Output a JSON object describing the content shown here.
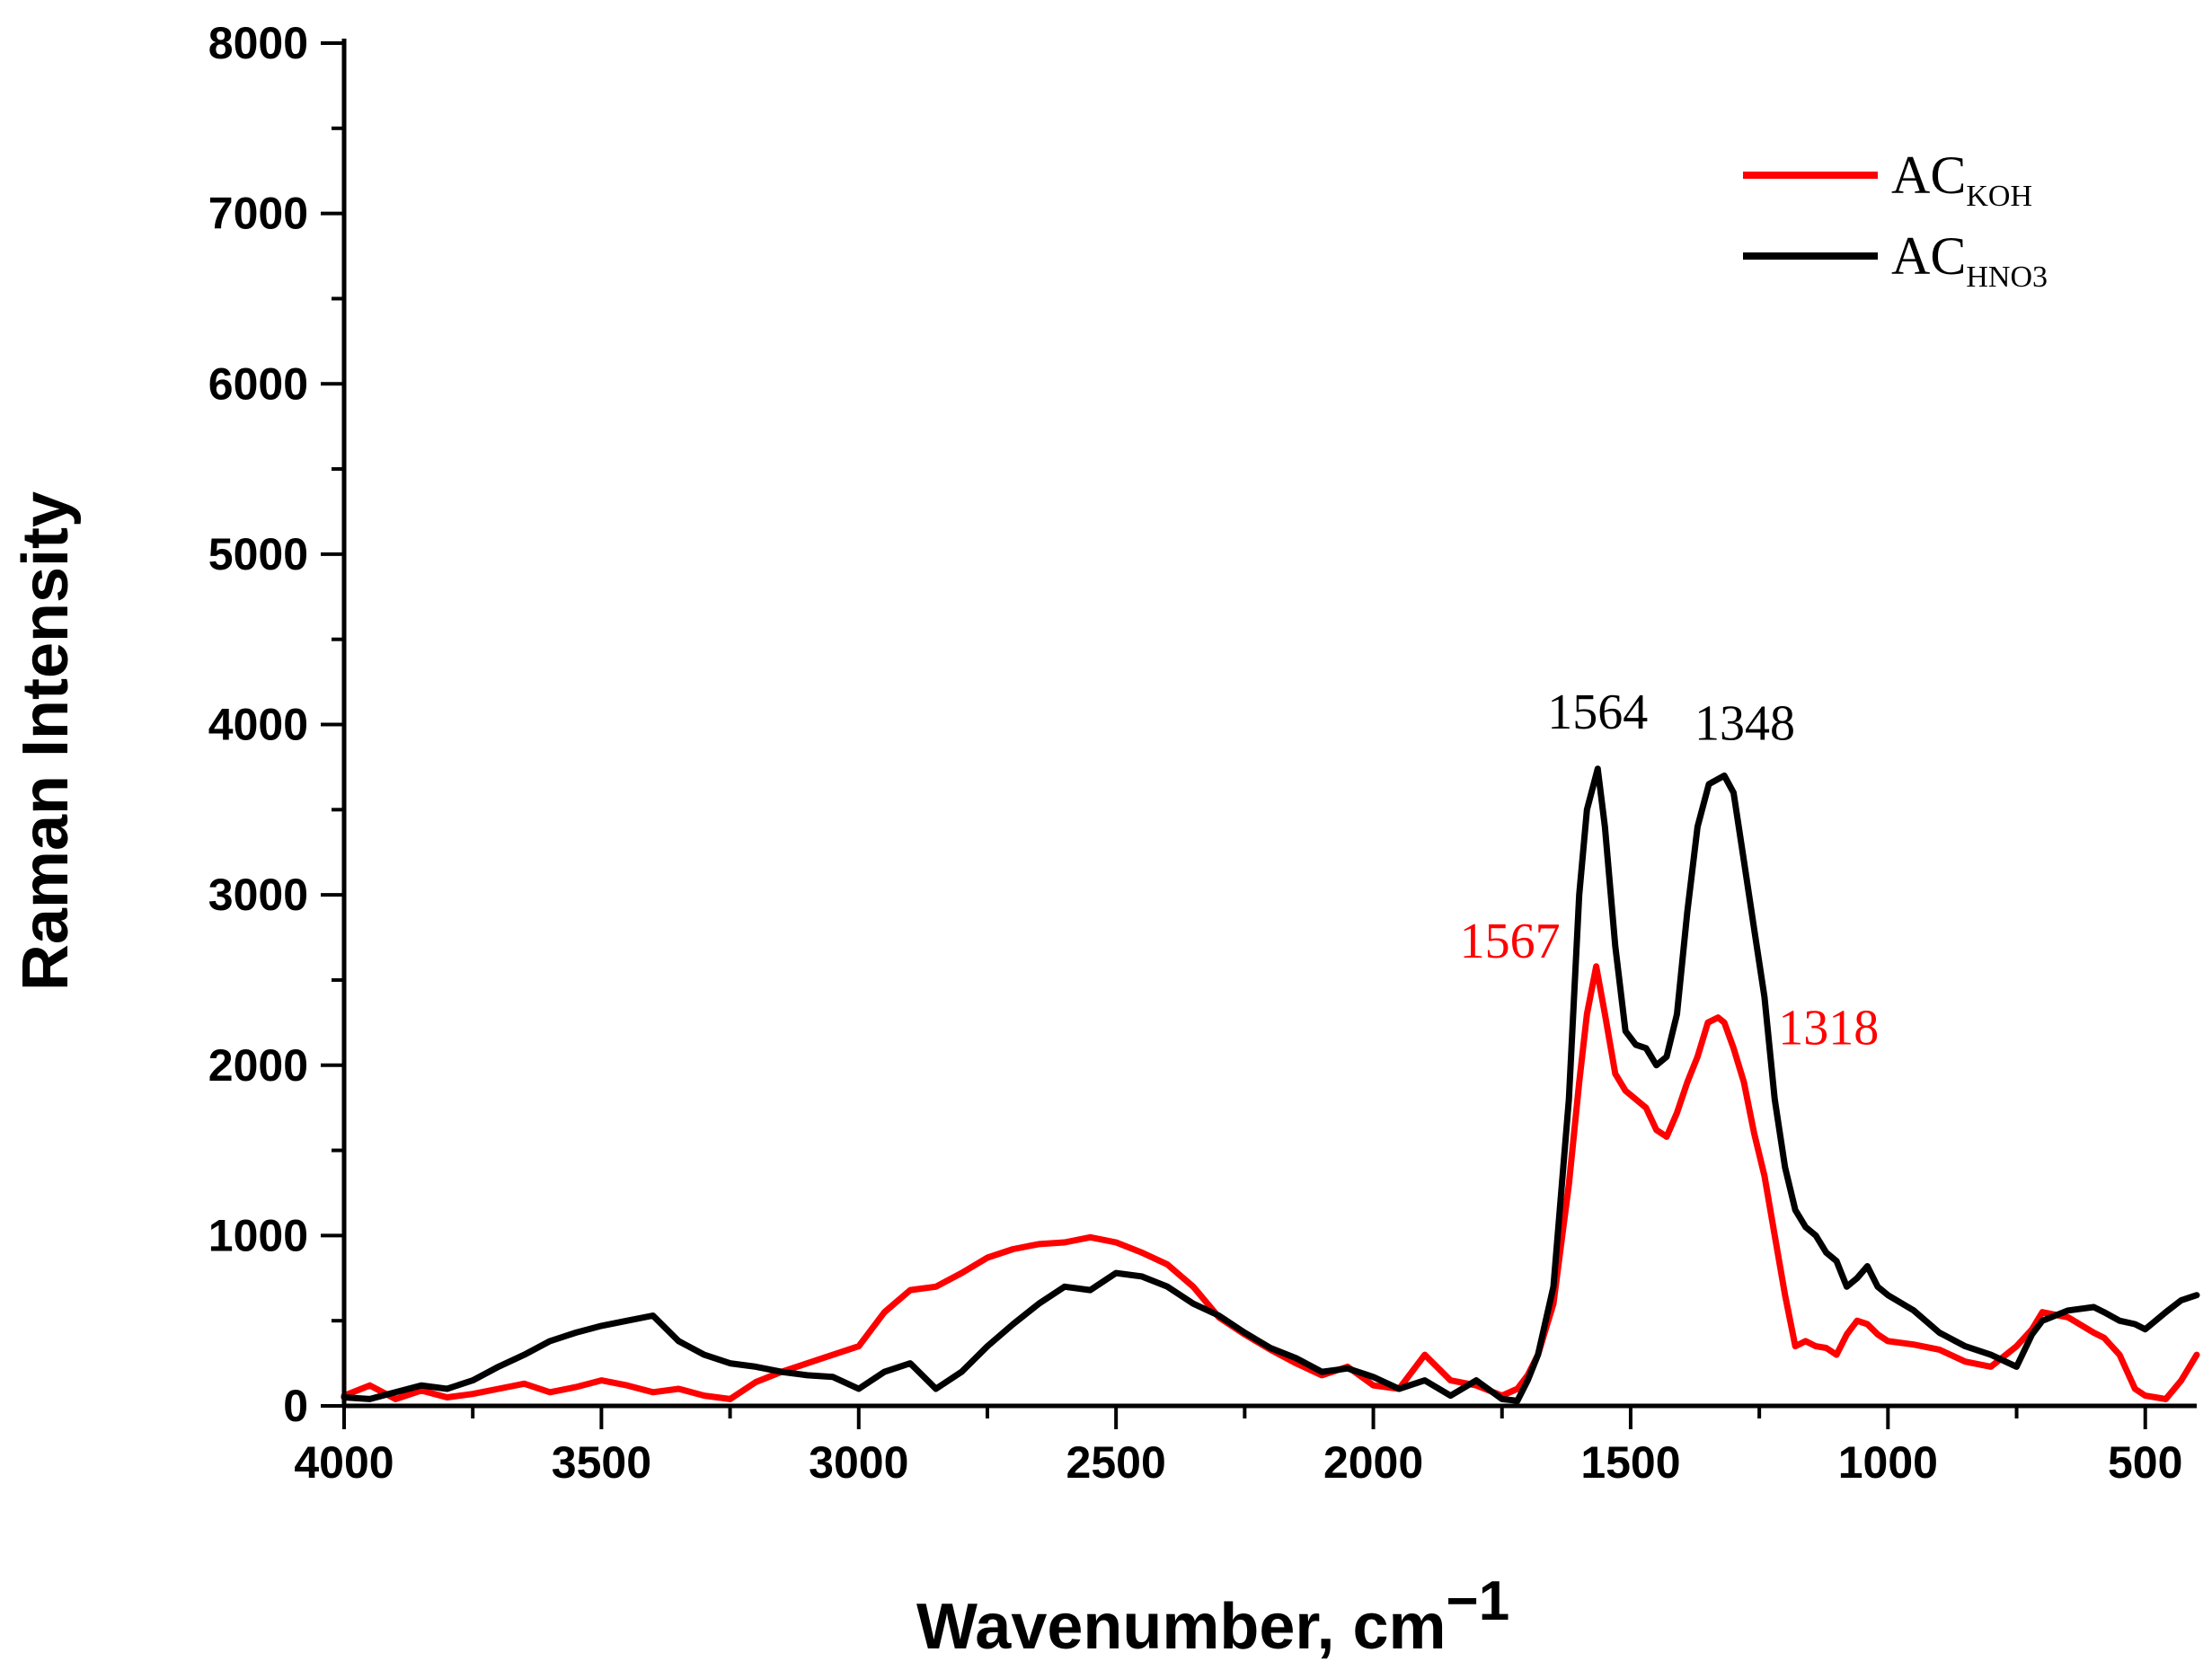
{
  "chart_data": {
    "type": "line",
    "title": "",
    "xlabel": "Wavenumber, cm",
    "xlabel_superscript": "−1",
    "ylabel": "Raman Intensity",
    "xlim": [
      4000,
      400
    ],
    "ylim": [
      0,
      8000
    ],
    "x_ticks": [
      4000,
      3500,
      3000,
      2500,
      2000,
      1500,
      1000,
      500
    ],
    "y_ticks": [
      0,
      1000,
      2000,
      3000,
      4000,
      5000,
      6000,
      7000,
      8000
    ],
    "legend_position": "top-right",
    "series": [
      {
        "name": "AC_KOH",
        "legend_main": "AC",
        "legend_sub": "KOH",
        "color": "#ff0000",
        "x": [
          4000,
          3950,
          3900,
          3850,
          3800,
          3750,
          3700,
          3650,
          3600,
          3550,
          3500,
          3450,
          3400,
          3350,
          3300,
          3250,
          3200,
          3150,
          3100,
          3050,
          3000,
          2950,
          2900,
          2850,
          2800,
          2750,
          2700,
          2650,
          2600,
          2550,
          2500,
          2450,
          2400,
          2350,
          2300,
          2250,
          2200,
          2150,
          2100,
          2050,
          2000,
          1950,
          1900,
          1850,
          1800,
          1750,
          1720,
          1700,
          1680,
          1650,
          1620,
          1600,
          1585,
          1567,
          1550,
          1530,
          1510,
          1490,
          1470,
          1450,
          1430,
          1410,
          1390,
          1370,
          1350,
          1330,
          1318,
          1300,
          1280,
          1260,
          1240,
          1220,
          1200,
          1180,
          1160,
          1140,
          1120,
          1100,
          1080,
          1060,
          1040,
          1020,
          1000,
          950,
          900,
          850,
          800,
          750,
          720,
          700,
          650,
          600,
          580,
          550,
          520,
          500,
          480,
          460,
          430,
          400
        ],
        "y": [
          60,
          120,
          40,
          90,
          50,
          70,
          100,
          130,
          80,
          110,
          150,
          120,
          80,
          100,
          60,
          40,
          140,
          200,
          250,
          300,
          350,
          550,
          680,
          700,
          780,
          870,
          920,
          950,
          960,
          990,
          960,
          900,
          830,
          700,
          520,
          420,
          330,
          250,
          180,
          230,
          120,
          100,
          300,
          150,
          120,
          60,
          100,
          180,
          300,
          600,
          1300,
          1900,
          2300,
          2580,
          2300,
          1950,
          1850,
          1800,
          1750,
          1620,
          1580,
          1720,
          1900,
          2050,
          2250,
          2280,
          2250,
          2100,
          1900,
          1600,
          1350,
          1000,
          650,
          350,
          380,
          350,
          340,
          300,
          420,
          500,
          480,
          420,
          380,
          360,
          330,
          260,
          230,
          350,
          450,
          550,
          520,
          430,
          400,
          300,
          100,
          60,
          50,
          40,
          150,
          300
        ]
      },
      {
        "name": "AC_HNO3",
        "legend_main": "AC",
        "legend_sub": "HNO3",
        "color": "#000000",
        "x": [
          4000,
          3950,
          3900,
          3850,
          3800,
          3750,
          3700,
          3650,
          3600,
          3550,
          3500,
          3450,
          3400,
          3350,
          3300,
          3250,
          3200,
          3150,
          3100,
          3050,
          3000,
          2950,
          2900,
          2850,
          2800,
          2750,
          2700,
          2650,
          2600,
          2550,
          2500,
          2450,
          2400,
          2350,
          2300,
          2250,
          2200,
          2150,
          2100,
          2050,
          2000,
          1950,
          1900,
          1850,
          1800,
          1750,
          1720,
          1700,
          1680,
          1650,
          1620,
          1600,
          1585,
          1564,
          1550,
          1530,
          1510,
          1490,
          1470,
          1450,
          1430,
          1410,
          1390,
          1370,
          1348,
          1330,
          1318,
          1300,
          1280,
          1260,
          1240,
          1220,
          1200,
          1180,
          1160,
          1140,
          1120,
          1100,
          1080,
          1060,
          1040,
          1020,
          1000,
          950,
          900,
          850,
          800,
          750,
          720,
          700,
          650,
          600,
          580,
          550,
          520,
          500,
          480,
          460,
          430,
          400
        ],
        "y": [
          50,
          40,
          80,
          120,
          100,
          150,
          230,
          300,
          380,
          430,
          470,
          500,
          530,
          380,
          300,
          250,
          230,
          200,
          180,
          170,
          100,
          200,
          250,
          100,
          200,
          350,
          480,
          600,
          700,
          680,
          780,
          760,
          700,
          600,
          530,
          430,
          340,
          280,
          200,
          220,
          170,
          100,
          150,
          60,
          150,
          40,
          30,
          150,
          300,
          700,
          1800,
          3000,
          3500,
          3740,
          3400,
          2700,
          2200,
          2120,
          2100,
          2000,
          2050,
          2300,
          2900,
          3400,
          3650,
          3680,
          3700,
          3600,
          3200,
          2800,
          2400,
          1800,
          1400,
          1150,
          1050,
          1000,
          900,
          850,
          700,
          750,
          820,
          700,
          650,
          560,
          430,
          350,
          300,
          230,
          420,
          500,
          560,
          580,
          550,
          500,
          480,
          450,
          500,
          550,
          620,
          650
        ]
      }
    ],
    "annotations": [
      {
        "text": "1564",
        "x": 1564,
        "y": 3740,
        "color": "#000000"
      },
      {
        "text": "1348",
        "x": 1348,
        "y": 3700,
        "color": "#000000"
      },
      {
        "text": "1567",
        "x": 1567,
        "y": 2580,
        "color": "#ff0000"
      },
      {
        "text": "1318",
        "x": 1318,
        "y": 2280,
        "color": "#ff0000"
      }
    ]
  }
}
